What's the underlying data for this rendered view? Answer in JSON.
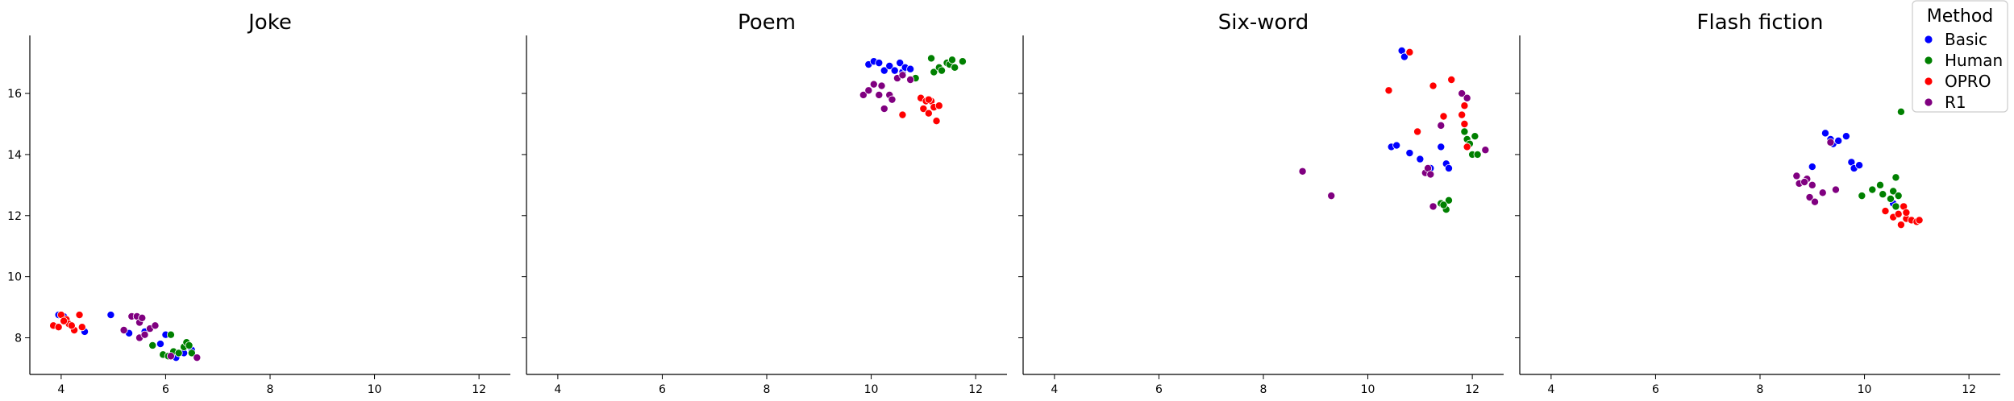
{
  "legend": {
    "title": "Method",
    "placement": "top-right",
    "entries": [
      {
        "label": "Basic",
        "color": "#0000ff"
      },
      {
        "label": "Human",
        "color": "#008000"
      },
      {
        "label": "OPRO",
        "color": "#ff0000"
      },
      {
        "label": "R1",
        "color": "#800080"
      }
    ]
  },
  "chart_data": [
    {
      "type": "scatter",
      "title": "Joke",
      "xlim": [
        3.4,
        12.6
      ],
      "ylim": [
        6.8,
        17.9
      ],
      "xticks": [
        4,
        6,
        8,
        10,
        12
      ],
      "yticks": [
        8,
        10,
        12,
        14,
        16
      ],
      "grid": false,
      "series": [
        {
          "name": "Basic",
          "points": [
            [
              3.95,
              8.75
            ],
            [
              4.45,
              8.2
            ],
            [
              4.95,
              8.75
            ],
            [
              5.2,
              8.25
            ],
            [
              5.3,
              8.15
            ],
            [
              5.6,
              8.2
            ],
            [
              5.9,
              7.8
            ],
            [
              6.0,
              8.1
            ],
            [
              6.2,
              7.35
            ],
            [
              6.5,
              7.6
            ],
            [
              4.05,
              8.7
            ],
            [
              6.35,
              7.5
            ]
          ]
        },
        {
          "name": "Human",
          "points": [
            [
              5.75,
              7.75
            ],
            [
              5.95,
              7.45
            ],
            [
              6.05,
              7.4
            ],
            [
              6.1,
              8.1
            ],
            [
              6.15,
              7.55
            ],
            [
              6.25,
              7.5
            ],
            [
              6.35,
              7.7
            ],
            [
              6.4,
              7.85
            ],
            [
              6.45,
              7.75
            ],
            [
              6.5,
              7.5
            ]
          ]
        },
        {
          "name": "OPRO",
          "points": [
            [
              3.85,
              8.4
            ],
            [
              3.95,
              8.35
            ],
            [
              4.0,
              8.75
            ],
            [
              4.1,
              8.6
            ],
            [
              4.15,
              8.45
            ],
            [
              4.25,
              8.25
            ],
            [
              4.35,
              8.75
            ],
            [
              4.4,
              8.35
            ],
            [
              4.05,
              8.55
            ],
            [
              4.2,
              8.4
            ]
          ]
        },
        {
          "name": "R1",
          "points": [
            [
              5.2,
              8.25
            ],
            [
              5.35,
              8.7
            ],
            [
              5.45,
              8.7
            ],
            [
              5.5,
              8.5
            ],
            [
              5.5,
              8.0
            ],
            [
              5.6,
              8.1
            ],
            [
              5.7,
              8.3
            ],
            [
              5.8,
              8.4
            ],
            [
              6.1,
              7.4
            ],
            [
              6.6,
              7.35
            ],
            [
              5.55,
              8.65
            ]
          ]
        }
      ]
    },
    {
      "type": "scatter",
      "title": "Poem",
      "xlim": [
        3.4,
        12.6
      ],
      "ylim": [
        6.8,
        17.9
      ],
      "xticks": [
        4,
        6,
        8,
        10,
        12
      ],
      "yticks": [
        8,
        10,
        12,
        14,
        16
      ],
      "grid": false,
      "series": [
        {
          "name": "Basic",
          "points": [
            [
              9.95,
              16.95
            ],
            [
              10.05,
              17.05
            ],
            [
              10.15,
              17.0
            ],
            [
              10.25,
              16.75
            ],
            [
              10.35,
              16.9
            ],
            [
              10.45,
              16.75
            ],
            [
              10.55,
              17.0
            ],
            [
              10.6,
              16.7
            ],
            [
              10.65,
              16.85
            ],
            [
              10.75,
              16.8
            ]
          ]
        },
        {
          "name": "Human",
          "points": [
            [
              11.15,
              17.15
            ],
            [
              11.2,
              16.7
            ],
            [
              11.3,
              16.85
            ],
            [
              11.35,
              16.75
            ],
            [
              11.45,
              17.0
            ],
            [
              11.5,
              16.95
            ],
            [
              11.55,
              17.1
            ],
            [
              11.6,
              16.85
            ],
            [
              11.75,
              17.05
            ],
            [
              10.85,
              16.5
            ]
          ]
        },
        {
          "name": "OPRO",
          "points": [
            [
              10.6,
              15.3
            ],
            [
              10.95,
              15.85
            ],
            [
              11.0,
              15.5
            ],
            [
              11.05,
              15.75
            ],
            [
              11.1,
              15.35
            ],
            [
              11.15,
              15.75
            ],
            [
              11.2,
              15.55
            ],
            [
              11.25,
              15.1
            ],
            [
              11.3,
              15.6
            ],
            [
              11.1,
              15.8
            ]
          ]
        },
        {
          "name": "R1",
          "points": [
            [
              9.85,
              15.95
            ],
            [
              9.95,
              16.1
            ],
            [
              10.05,
              16.3
            ],
            [
              10.15,
              15.95
            ],
            [
              10.2,
              16.25
            ],
            [
              10.25,
              15.5
            ],
            [
              10.35,
              15.95
            ],
            [
              10.4,
              15.8
            ],
            [
              10.5,
              16.5
            ],
            [
              10.6,
              16.6
            ],
            [
              10.75,
              16.45
            ]
          ]
        }
      ]
    },
    {
      "type": "scatter",
      "title": "Six-word",
      "xlim": [
        3.4,
        12.6
      ],
      "ylim": [
        6.8,
        17.9
      ],
      "xticks": [
        4,
        6,
        8,
        10,
        12
      ],
      "yticks": [
        8,
        10,
        12,
        14,
        16
      ],
      "grid": false,
      "series": [
        {
          "name": "Basic",
          "points": [
            [
              10.45,
              14.25
            ],
            [
              10.55,
              14.3
            ],
            [
              10.65,
              17.4
            ],
            [
              10.7,
              17.2
            ],
            [
              10.8,
              14.05
            ],
            [
              11.0,
              13.85
            ],
            [
              11.2,
              13.55
            ],
            [
              11.4,
              14.25
            ],
            [
              11.5,
              13.7
            ],
            [
              11.55,
              13.55
            ]
          ]
        },
        {
          "name": "Human",
          "points": [
            [
              11.4,
              12.4
            ],
            [
              11.5,
              12.2
            ],
            [
              11.55,
              12.5
            ],
            [
              11.85,
              14.75
            ],
            [
              11.9,
              14.5
            ],
            [
              11.95,
              14.35
            ],
            [
              12.0,
              14.0
            ],
            [
              12.05,
              14.6
            ],
            [
              12.1,
              14.0
            ],
            [
              11.45,
              12.35
            ]
          ]
        },
        {
          "name": "OPRO",
          "points": [
            [
              10.4,
              16.1
            ],
            [
              10.8,
              17.35
            ],
            [
              10.95,
              14.75
            ],
            [
              11.25,
              16.25
            ],
            [
              11.45,
              15.25
            ],
            [
              11.6,
              16.45
            ],
            [
              11.8,
              15.3
            ],
            [
              11.85,
              15.6
            ],
            [
              11.9,
              14.25
            ],
            [
              11.85,
              15.0
            ]
          ]
        },
        {
          "name": "R1",
          "points": [
            [
              8.75,
              13.45
            ],
            [
              9.3,
              12.65
            ],
            [
              11.1,
              13.4
            ],
            [
              11.15,
              13.55
            ],
            [
              11.2,
              13.35
            ],
            [
              11.25,
              12.3
            ],
            [
              11.4,
              14.95
            ],
            [
              11.8,
              16.0
            ],
            [
              11.9,
              15.85
            ],
            [
              12.25,
              14.15
            ]
          ]
        }
      ]
    },
    {
      "type": "scatter",
      "title": "Flash fiction",
      "xlim": [
        3.4,
        12.6
      ],
      "ylim": [
        6.8,
        17.9
      ],
      "xticks": [
        4,
        6,
        8,
        10,
        12
      ],
      "yticks": [
        8,
        10,
        12,
        14,
        16
      ],
      "grid": false,
      "series": [
        {
          "name": "Basic",
          "points": [
            [
              9.0,
              13.6
            ],
            [
              9.25,
              14.7
            ],
            [
              9.35,
              14.5
            ],
            [
              9.4,
              14.35
            ],
            [
              9.5,
              14.45
            ],
            [
              9.65,
              14.6
            ],
            [
              9.75,
              13.75
            ],
            [
              9.8,
              13.55
            ],
            [
              9.9,
              13.65
            ],
            [
              10.55,
              12.4
            ]
          ]
        },
        {
          "name": "Human",
          "points": [
            [
              9.95,
              12.65
            ],
            [
              10.15,
              12.85
            ],
            [
              10.3,
              13.0
            ],
            [
              10.35,
              12.7
            ],
            [
              10.5,
              12.55
            ],
            [
              10.55,
              12.8
            ],
            [
              10.6,
              13.25
            ],
            [
              10.65,
              12.65
            ],
            [
              10.7,
              15.4
            ],
            [
              10.6,
              12.3
            ]
          ]
        },
        {
          "name": "OPRO",
          "points": [
            [
              10.4,
              12.15
            ],
            [
              10.55,
              11.95
            ],
            [
              10.65,
              12.05
            ],
            [
              10.7,
              11.7
            ],
            [
              10.75,
              12.3
            ],
            [
              10.8,
              11.9
            ],
            [
              10.9,
              11.85
            ],
            [
              11.0,
              11.8
            ],
            [
              11.05,
              11.85
            ],
            [
              10.8,
              12.1
            ]
          ]
        },
        {
          "name": "R1",
          "points": [
            [
              8.7,
              13.3
            ],
            [
              8.75,
              13.05
            ],
            [
              8.9,
              13.2
            ],
            [
              8.95,
              12.6
            ],
            [
              9.0,
              13.0
            ],
            [
              9.05,
              12.45
            ],
            [
              9.2,
              12.75
            ],
            [
              9.35,
              14.4
            ],
            [
              9.45,
              12.85
            ],
            [
              8.85,
              13.1
            ]
          ]
        }
      ]
    }
  ]
}
